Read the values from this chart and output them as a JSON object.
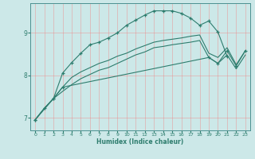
{
  "xlabel": "Humidex (Indice chaleur)",
  "bg_color": "#cce8e8",
  "grid_color": "#f08080",
  "line_color": "#2e7d6e",
  "xlim": [
    -0.5,
    23.5
  ],
  "ylim": [
    6.7,
    9.7
  ],
  "yticks": [
    7,
    8,
    9
  ],
  "xticks": [
    0,
    1,
    2,
    3,
    4,
    5,
    6,
    7,
    8,
    9,
    10,
    11,
    12,
    13,
    14,
    15,
    16,
    17,
    18,
    19,
    20,
    21,
    22,
    23
  ],
  "series": [
    {
      "x": [
        0,
        1,
        2,
        3,
        4,
        5,
        6,
        7,
        8,
        9,
        10,
        11,
        12,
        13,
        14,
        15,
        16,
        17,
        18,
        19,
        20,
        21
      ],
      "y": [
        6.95,
        7.22,
        7.45,
        8.05,
        8.3,
        8.52,
        8.72,
        8.78,
        8.88,
        9.0,
        9.18,
        9.3,
        9.42,
        9.52,
        9.52,
        9.52,
        9.46,
        9.35,
        9.18,
        9.28,
        9.02,
        8.45
      ],
      "marker": true
    },
    {
      "x": [
        0,
        1,
        2,
        3,
        4,
        5,
        6,
        7,
        8,
        9,
        10,
        11,
        12,
        13,
        14,
        15,
        16,
        17,
        18,
        19,
        20,
        21,
        22,
        23
      ],
      "y": [
        6.95,
        7.22,
        7.45,
        7.72,
        7.95,
        8.08,
        8.18,
        8.28,
        8.35,
        8.45,
        8.52,
        8.62,
        8.7,
        8.78,
        8.82,
        8.85,
        8.88,
        8.92,
        8.95,
        8.52,
        8.42,
        8.65,
        8.25,
        8.58
      ],
      "marker": false
    },
    {
      "x": [
        0,
        1,
        2,
        3,
        4,
        5,
        6,
        7,
        8,
        9,
        10,
        11,
        12,
        13,
        14,
        15,
        16,
        17,
        18,
        19,
        20,
        21,
        22,
        23
      ],
      "y": [
        6.95,
        7.22,
        7.45,
        7.62,
        7.78,
        7.92,
        8.02,
        8.12,
        8.18,
        8.28,
        8.38,
        8.48,
        8.55,
        8.65,
        8.68,
        8.72,
        8.75,
        8.78,
        8.82,
        8.42,
        8.28,
        8.48,
        8.15,
        8.48
      ],
      "marker": false
    },
    {
      "x": [
        0,
        2,
        3,
        19,
        20,
        21,
        22,
        23
      ],
      "y": [
        6.95,
        7.45,
        7.72,
        8.42,
        8.28,
        8.58,
        8.22,
        8.58
      ],
      "marker": true
    }
  ]
}
